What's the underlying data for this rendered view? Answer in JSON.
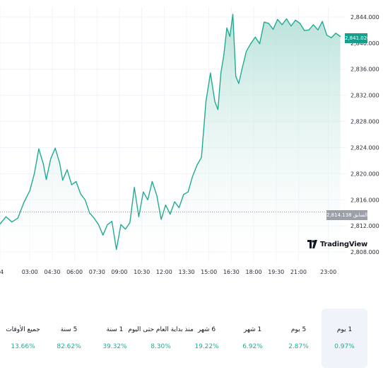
{
  "chart_data": {
    "type": "area",
    "y_ticks": [
      "2,844.000",
      "2,840.000",
      "2,836.000",
      "2,832.000",
      "2,828.000",
      "2,824.000",
      "2,820.000",
      "2,816.000",
      "2,812.000",
      "2,808.000"
    ],
    "y_tick_values": [
      2844,
      2840,
      2836,
      2832,
      2828,
      2824,
      2820,
      2816,
      2812,
      2808
    ],
    "ylim": [
      2806.5,
      2845.5
    ],
    "x_ticks": [
      "4",
      "03:00",
      "04:30",
      "06:00",
      "07:30",
      "09:00",
      "10:30",
      "12:00",
      "13:30",
      "15:00",
      "16:30",
      "18:00",
      "19:30",
      "21:00",
      "23:00"
    ],
    "x_tick_values": [
      0,
      2,
      3.5,
      5,
      6.5,
      8,
      9.5,
      11,
      12.5,
      14,
      15.5,
      17,
      18.5,
      20,
      22
    ],
    "xlim": [
      0,
      23.2
    ],
    "series": [
      {
        "x": [
          0.0,
          0.4,
          0.8,
          1.2,
          1.6,
          2.0,
          2.3,
          2.6,
          2.9,
          3.1,
          3.4,
          3.7,
          4.0,
          4.2,
          4.5,
          4.8,
          5.1,
          5.4,
          5.7,
          6.0,
          6.3,
          6.6,
          6.9,
          7.2,
          7.5,
          7.8,
          8.1,
          8.4,
          8.7,
          9.0,
          9.3,
          9.6,
          9.9,
          10.2,
          10.5,
          10.8,
          11.1,
          11.4,
          11.7,
          12.0,
          12.3,
          12.6,
          12.9,
          13.2,
          13.5,
          13.8,
          14.1,
          14.4,
          14.6,
          14.8,
          15.0,
          15.2,
          15.4,
          15.6,
          15.8,
          16.0,
          16.2,
          16.5,
          16.8,
          17.1,
          17.4,
          17.7,
          18.0,
          18.3,
          18.6,
          18.9,
          19.2,
          19.5,
          19.8,
          20.1,
          20.4,
          20.7,
          21.0,
          21.3,
          21.6,
          21.9,
          22.2,
          22.5,
          22.8
        ],
        "values": [
          2812.3,
          2813.4,
          2812.6,
          2813.2,
          2815.6,
          2817.4,
          2820.0,
          2823.8,
          2821.5,
          2819.1,
          2822.3,
          2823.9,
          2821.6,
          2819.0,
          2820.6,
          2818.3,
          2818.8,
          2816.9,
          2816.0,
          2814.0,
          2813.2,
          2812.2,
          2810.6,
          2812.2,
          2812.7,
          2808.4,
          2812.2,
          2811.5,
          2812.5,
          2817.9,
          2813.4,
          2817.2,
          2816.0,
          2818.8,
          2816.7,
          2813.0,
          2815.2,
          2813.8,
          2815.7,
          2814.8,
          2816.8,
          2817.2,
          2819.6,
          2821.3,
          2822.5,
          2831.1,
          2835.4,
          2831.0,
          2829.8,
          2835.4,
          2838.2,
          2842.3,
          2841.0,
          2844.4,
          2834.9,
          2833.8,
          2835.9,
          2838.7,
          2839.9,
          2840.9,
          2839.9,
          2843.2,
          2843.0,
          2842.1,
          2843.6,
          2842.8,
          2843.7,
          2842.6,
          2843.5,
          2843.0,
          2841.9,
          2842.0,
          2842.8,
          2842.0,
          2843.3,
          2841.2,
          2840.8,
          2841.5,
          2841.0
        ]
      }
    ],
    "prev_close_value": 2814.138,
    "prev_close_label": "الإغلاق السابق 2,814.138",
    "last_value_label": "2,841.020",
    "grid": true
  },
  "colors": {
    "line": "#22ab94",
    "area_top": "#b2dfd6",
    "area_bottom": "#ffffff",
    "prev_close_line": "#9ba0a8",
    "up": "#22ab94"
  },
  "brand": {
    "name": "TradingView",
    "icon": "tradingview-logo-icon"
  },
  "periods": [
    {
      "label": "1 يوم",
      "change": "0.97%",
      "active": true
    },
    {
      "label": "5 يوم",
      "change": "2.87%",
      "active": false
    },
    {
      "label": "1 شهر",
      "change": "6.92%",
      "active": false
    },
    {
      "label": "6 شهر",
      "change": "19.22%",
      "active": false
    },
    {
      "label": "منذ بداية العام حتى اليوم",
      "change": "8.30%",
      "active": false
    },
    {
      "label": "1 سنة",
      "change": "39.32%",
      "active": false
    },
    {
      "label": "5 سنة",
      "change": "82.62%",
      "active": false
    },
    {
      "label": "جميع الأوقات",
      "change": "13.66%",
      "active": false
    }
  ]
}
